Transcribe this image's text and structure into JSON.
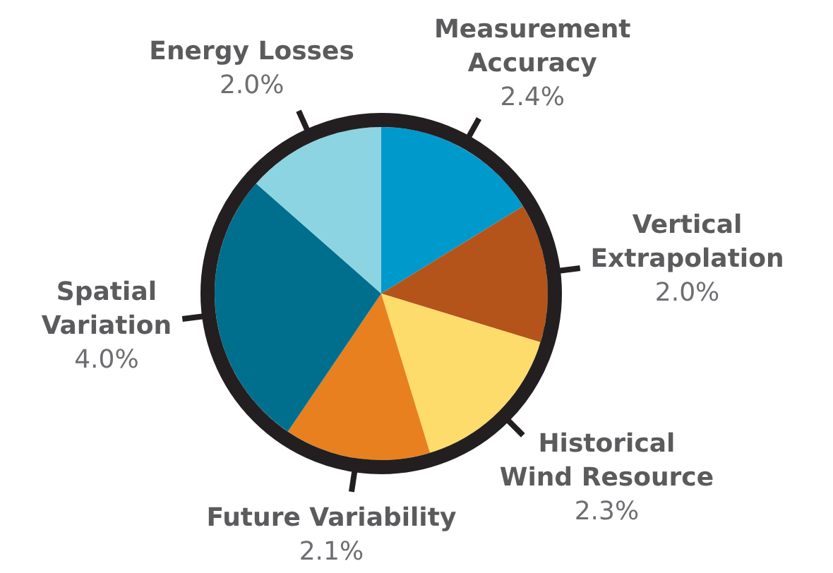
{
  "chart_data": {
    "type": "pie",
    "categories": [
      "Measurement Accuracy",
      "Vertical Extrapolation",
      "Historical Wind Resource",
      "Future Variability",
      "Spatial Variation",
      "Energy Losses"
    ],
    "values": [
      2.4,
      2.0,
      2.3,
      2.1,
      4.0,
      2.0
    ],
    "colors": [
      "#0099cc",
      "#b5541a",
      "#fddc6c",
      "#e8801f",
      "#006f8e",
      "#8dd4e3"
    ],
    "value_labels": [
      "2.4%",
      "2.0%",
      "2.3%",
      "2.1%",
      "4.0%",
      "2.0%"
    ],
    "legend": false
  }
}
